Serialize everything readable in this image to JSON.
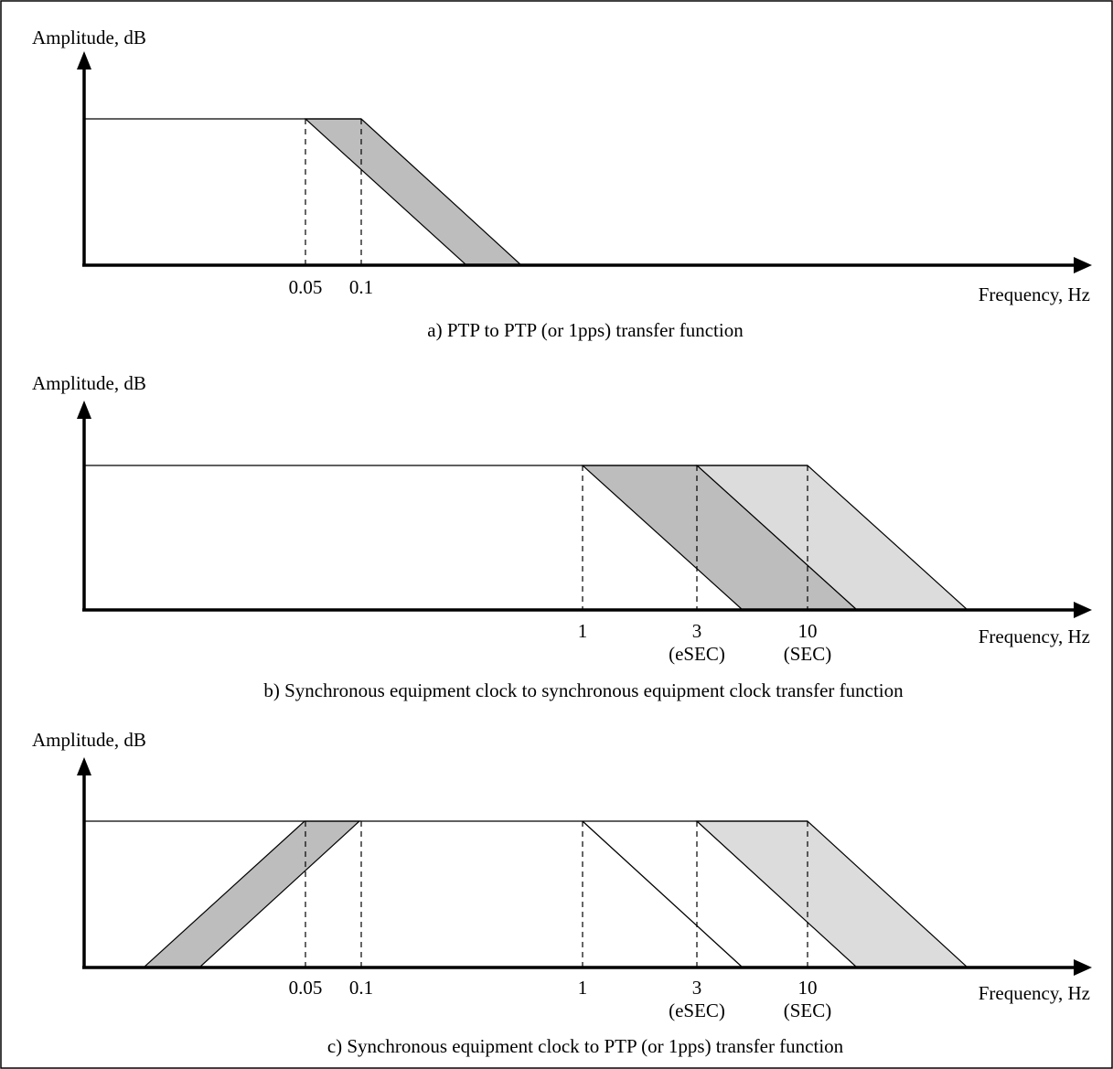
{
  "colors": {
    "band_dark": "#bdbdbd",
    "band_light": "#dcdcdc",
    "line": "#000000",
    "background": "#ffffff"
  },
  "panels": [
    {
      "id": "a",
      "y_label": "Amplitude, dB",
      "x_label": "Frequency, Hz",
      "caption": "a) PTP to PTP (or 1pps) transfer function",
      "ticks": [
        {
          "value": "0.05",
          "sub": ""
        },
        {
          "value": "0.1",
          "sub": ""
        }
      ]
    },
    {
      "id": "b",
      "y_label": "Amplitude, dB",
      "x_label": "Frequency, Hz",
      "caption": "b) Synchronous equipment clock to synchronous equipment clock transfer function",
      "ticks": [
        {
          "value": "1",
          "sub": ""
        },
        {
          "value": "3",
          "sub": "(eSEC)"
        },
        {
          "value": "10",
          "sub": "(SEC)"
        }
      ]
    },
    {
      "id": "c",
      "y_label": "Amplitude, dB",
      "x_label": "Frequency, Hz",
      "caption": "c) Synchronous equipment clock to PTP (or 1pps) transfer function",
      "ticks": [
        {
          "value": "0.05",
          "sub": ""
        },
        {
          "value": "0.1",
          "sub": ""
        },
        {
          "value": "1",
          "sub": ""
        },
        {
          "value": "3",
          "sub": "(eSEC)"
        },
        {
          "value": "10",
          "sub": "(SEC)"
        }
      ]
    }
  ]
}
